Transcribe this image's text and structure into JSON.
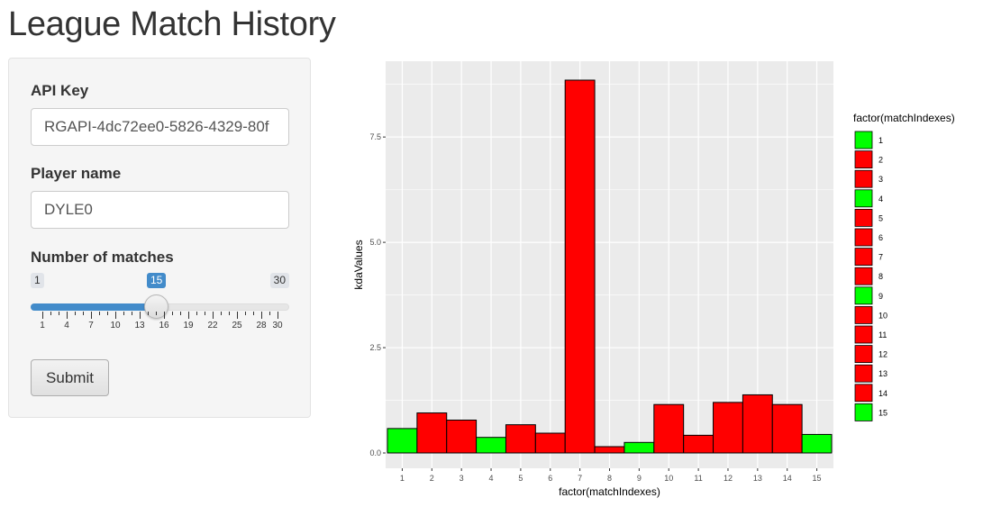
{
  "page": {
    "title": "League Match History"
  },
  "form": {
    "api_key_label": "API Key",
    "api_key_value": "RGAPI-4dc72ee0-5826-4329-80f",
    "player_name_label": "Player name",
    "player_name_value": "DYLE0",
    "matches_label": "Number of matches",
    "slider": {
      "min": 1,
      "max": 30,
      "value": 15,
      "min_label": "1",
      "max_label": "30",
      "value_label": "15",
      "tick_labels": [
        "1",
        "4",
        "7",
        "10",
        "13",
        "16",
        "19",
        "22",
        "25",
        "28",
        "30"
      ],
      "accent_color": "#428bca"
    },
    "submit_label": "Submit"
  },
  "chart_data": {
    "type": "bar",
    "categories": [
      "1",
      "2",
      "3",
      "4",
      "5",
      "6",
      "7",
      "8",
      "9",
      "10",
      "11",
      "12",
      "13",
      "14",
      "15"
    ],
    "values": [
      0.58,
      0.95,
      0.78,
      0.37,
      0.67,
      0.47,
      8.85,
      0.15,
      0.25,
      1.15,
      0.42,
      1.2,
      1.38,
      1.15,
      0.44
    ],
    "fill_colors": [
      "#00ff00",
      "#ff0000",
      "#ff0000",
      "#00ff00",
      "#ff0000",
      "#ff0000",
      "#ff0000",
      "#ff0000",
      "#00ff00",
      "#ff0000",
      "#ff0000",
      "#ff0000",
      "#ff0000",
      "#ff0000",
      "#00ff00"
    ],
    "title": "",
    "xlabel": "factor(matchIndexes)",
    "ylabel": "kdaValues",
    "ylim": [
      0,
      9.3
    ],
    "yticks": [
      0.0,
      2.5,
      5.0,
      7.5
    ],
    "ytick_labels": [
      "0.0",
      "2.5",
      "5.0",
      "7.5"
    ],
    "grid": true,
    "legend": {
      "title": "factor(matchIndexes)",
      "placement": "right"
    },
    "panel_bg": "#ebebeb",
    "grid_color": "#ffffff"
  }
}
